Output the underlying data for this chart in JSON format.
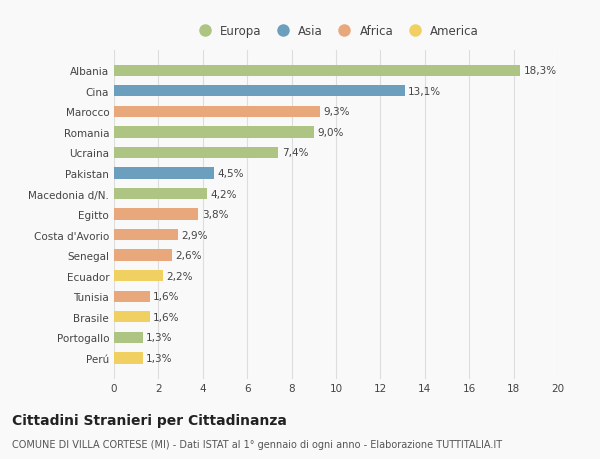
{
  "categories": [
    "Albania",
    "Cina",
    "Marocco",
    "Romania",
    "Ucraina",
    "Pakistan",
    "Macedonia d/N.",
    "Egitto",
    "Costa d'Avorio",
    "Senegal",
    "Ecuador",
    "Tunisia",
    "Brasile",
    "Portogallo",
    "Perú"
  ],
  "values": [
    18.3,
    13.1,
    9.3,
    9.0,
    7.4,
    4.5,
    4.2,
    3.8,
    2.9,
    2.6,
    2.2,
    1.6,
    1.6,
    1.3,
    1.3
  ],
  "labels": [
    "18,3%",
    "13,1%",
    "9,3%",
    "9,0%",
    "7,4%",
    "4,5%",
    "4,2%",
    "3,8%",
    "2,9%",
    "2,6%",
    "2,2%",
    "1,6%",
    "1,6%",
    "1,3%",
    "1,3%"
  ],
  "continents": [
    "Europa",
    "Asia",
    "Africa",
    "Europa",
    "Europa",
    "Asia",
    "Europa",
    "Africa",
    "Africa",
    "Africa",
    "America",
    "Africa",
    "America",
    "Europa",
    "America"
  ],
  "colors": {
    "Europa": "#adc483",
    "Asia": "#6c9ebe",
    "Africa": "#e8a87c",
    "America": "#f0d060"
  },
  "xlim": [
    0,
    20
  ],
  "xticks": [
    0,
    2,
    4,
    6,
    8,
    10,
    12,
    14,
    16,
    18,
    20
  ],
  "title": "Cittadini Stranieri per Cittadinanza",
  "subtitle": "COMUNE DI VILLA CORTESE (MI) - Dati ISTAT al 1° gennaio di ogni anno - Elaborazione TUTTITALIA.IT",
  "background_color": "#f9f9f9",
  "grid_color": "#dddddd",
  "bar_height": 0.55,
  "title_fontsize": 10,
  "subtitle_fontsize": 7,
  "label_fontsize": 7.5,
  "tick_fontsize": 7.5,
  "legend_fontsize": 8.5
}
